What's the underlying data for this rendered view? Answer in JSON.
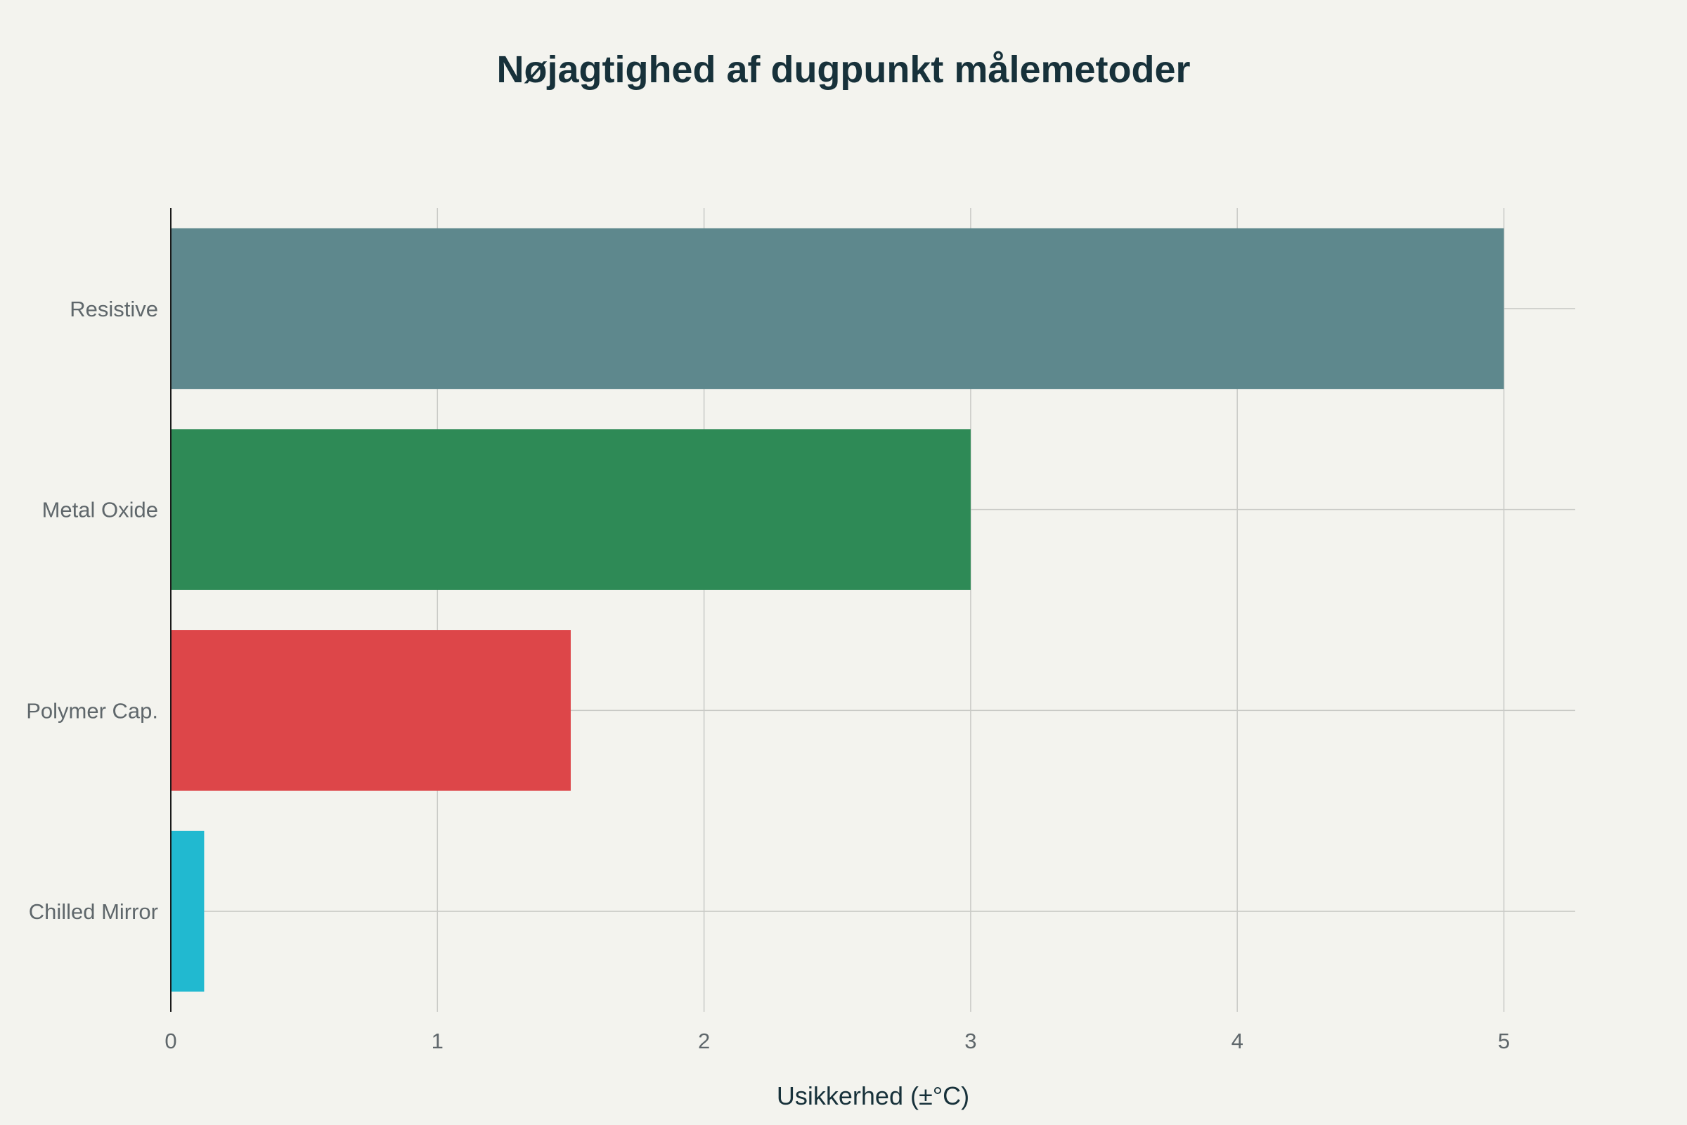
{
  "chart_data": {
    "type": "bar",
    "orientation": "horizontal",
    "title": "Nøjagtighed af dugpunkt målemetoder",
    "xlabel": "Usikkerhed (±°C)",
    "ylabel": "",
    "categories": [
      "Resistive",
      "Metal Oxide",
      "Polymer Cap.",
      "Chilled Mirror"
    ],
    "values": [
      5,
      3,
      1.5,
      0.125
    ],
    "colors": [
      "#5e888d",
      "#2e8a56",
      "#dd4649",
      "#21b9d0"
    ],
    "xlim": [
      0,
      5.25
    ],
    "xticks": [
      "0",
      "1",
      "2",
      "3",
      "4",
      "5"
    ],
    "grid": true,
    "legend": false,
    "background": "#f3f3ee"
  }
}
